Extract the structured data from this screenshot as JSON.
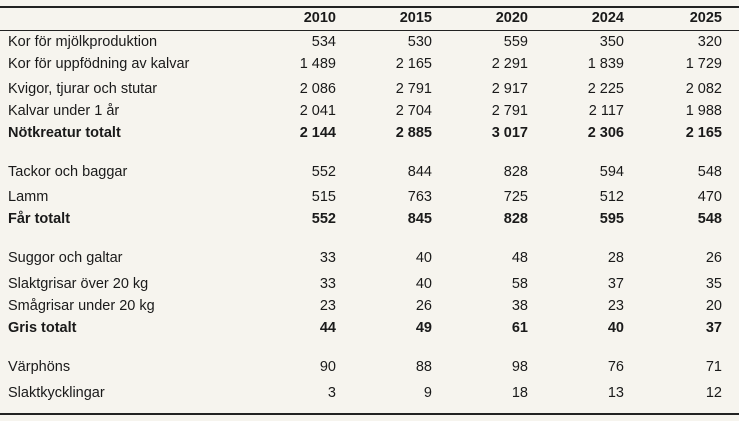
{
  "header": {
    "years": [
      "2010",
      "2015",
      "2020",
      "2024",
      "2025"
    ]
  },
  "groups": [
    {
      "rows": [
        {
          "label": "Kor för mjölkproduktion",
          "values": [
            "534",
            "530",
            "559",
            "350",
            "320"
          ]
        },
        {
          "label": "Kor för uppfödning av kalvar",
          "values": [
            "1 489",
            "2 165",
            "2 291",
            "1 839",
            "1 729"
          ]
        },
        {
          "label": "Kvigor, tjurar och stutar",
          "values": [
            "2 086",
            "2 791",
            "2 917",
            "2 225",
            "2 082"
          ]
        },
        {
          "label": "Kalvar under 1 år",
          "values": [
            "2 041",
            "2 704",
            "2 791",
            "2 117",
            "1 988"
          ]
        }
      ],
      "total": {
        "label": "Nötkreatur totalt",
        "values": [
          "2 144",
          "2 885",
          "3 017",
          "2 306",
          "2 165"
        ]
      }
    },
    {
      "rows": [
        {
          "label": "Tackor och baggar",
          "values": [
            "552",
            "844",
            "828",
            "594",
            "548"
          ]
        },
        {
          "label": "Lamm",
          "values": [
            "515",
            "763",
            "725",
            "512",
            "470"
          ]
        }
      ],
      "total": {
        "label": "Får totalt",
        "values": [
          "552",
          "845",
          "828",
          "595",
          "548"
        ]
      }
    },
    {
      "rows": [
        {
          "label": "Suggor och galtar",
          "values": [
            "33",
            "40",
            "48",
            "28",
            "26"
          ]
        },
        {
          "label": "Slaktgrisar över 20 kg",
          "values": [
            "33",
            "40",
            "58",
            "37",
            "35"
          ]
        },
        {
          "label": "Smågrisar under 20 kg",
          "values": [
            "23",
            "26",
            "38",
            "23",
            "20"
          ]
        }
      ],
      "total": {
        "label": "Gris totalt",
        "values": [
          "44",
          "49",
          "61",
          "40",
          "37"
        ]
      }
    },
    {
      "rows": [
        {
          "label": "Värphöns",
          "values": [
            "90",
            "88",
            "98",
            "76",
            "71"
          ]
        },
        {
          "label": "Slaktkycklingar",
          "values": [
            "3",
            "9",
            "18",
            "13",
            "12"
          ]
        }
      ]
    }
  ]
}
